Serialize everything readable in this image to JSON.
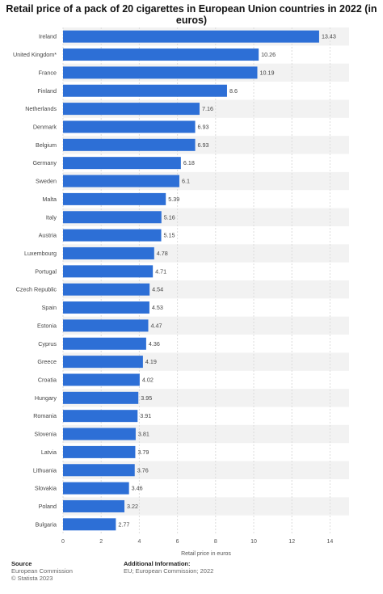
{
  "chart_data": {
    "type": "bar",
    "orientation": "horizontal",
    "title": "Retail price of a pack of 20 cigarettes in European Union countries in 2022 (in euros)",
    "xlabel": "Retail price in euros",
    "ylabel": "",
    "xlim": [
      0,
      15
    ],
    "xticks": [
      "0",
      "2",
      "4",
      "6",
      "8",
      "10",
      "12",
      "14"
    ],
    "grid": true,
    "bar_color": "#2d6fd6",
    "categories": [
      "Ireland",
      "United Kingdom*",
      "France",
      "Finland",
      "Netherlands",
      "Denmark",
      "Belgium",
      "Germany",
      "Sweden",
      "Malta",
      "Italy",
      "Austria",
      "Luxembourg",
      "Portugal",
      "Czech Republic",
      "Spain",
      "Estonia",
      "Cyprus",
      "Greece",
      "Croatia",
      "Hungary",
      "Romania",
      "Slovenia",
      "Latvia",
      "Lithuania",
      "Slovakia",
      "Poland",
      "Bulgaria"
    ],
    "values": [
      13.43,
      10.26,
      10.19,
      8.6,
      7.16,
      6.93,
      6.93,
      6.18,
      6.1,
      5.39,
      5.16,
      5.15,
      4.78,
      4.71,
      4.54,
      4.53,
      4.47,
      4.36,
      4.19,
      4.02,
      3.95,
      3.91,
      3.81,
      3.79,
      3.76,
      3.46,
      3.22,
      2.77
    ],
    "data_labels": [
      "13.43",
      "10.26",
      "10.19",
      "8.6",
      "7.16",
      "6.93",
      "6.93",
      "6.18",
      "6.1",
      "5.39",
      "5.16",
      "5.15",
      "4.78",
      "4.71",
      "4.54",
      "4.53",
      "4.47",
      "4.36",
      "4.19",
      "4.02",
      "3.95",
      "3.91",
      "3.81",
      "3.79",
      "3.76",
      "3.46",
      "3.22",
      "2.77"
    ]
  },
  "footer": {
    "source_label": "Source",
    "source_lines": [
      "European Commission",
      "© Statista 2023"
    ],
    "info_label": "Additional Information:",
    "info_lines": [
      "EU; European Commission; 2022"
    ]
  }
}
